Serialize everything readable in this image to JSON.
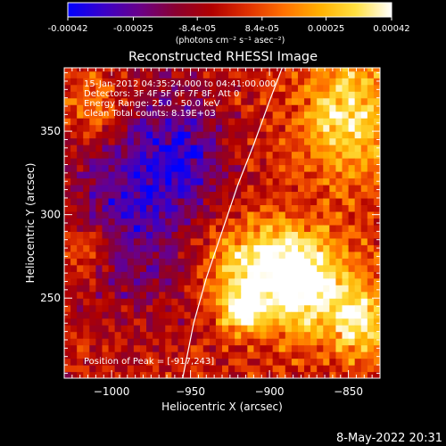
{
  "colorbar": {
    "ticks": [
      "-0.00042",
      "-0.00025",
      "-8.4e-05",
      "8.4e-05",
      "0.00025",
      "0.00042"
    ],
    "tick_values": [
      -0.00042,
      -0.00025,
      -8.4e-05,
      8.4e-05,
      0.00025,
      0.00042
    ],
    "range": [
      -0.00042,
      0.00042
    ],
    "units_label": "(photons cm⁻² s⁻¹ asec⁻²)",
    "colors": [
      "#0000ff",
      "#3a00c8",
      "#6a0088",
      "#8a0030",
      "#b00000",
      "#e03000",
      "#ff7000",
      "#ffb000",
      "#ffe040",
      "#ffffff"
    ]
  },
  "chart_data": {
    "type": "heatmap",
    "title": "Reconstructed RHESSI Image",
    "xlabel": "Heliocentric X (arcsec)",
    "ylabel": "Heliocentric Y (arcsec)",
    "xlim": [
      -1030,
      -830
    ],
    "ylim": [
      202,
      388
    ],
    "x_ticks": [
      -1000,
      -950,
      -900,
      -850
    ],
    "x_tick_labels": [
      "−1000",
      "−950",
      "−900",
      "−850"
    ],
    "y_ticks": [
      250,
      300,
      350
    ],
    "y_tick_labels": [
      "250",
      "300",
      "350"
    ],
    "limb_curve": {
      "x": [
        -955,
        -948,
        -940,
        -930,
        -920,
        -910,
        -900,
        -892
      ],
      "y": [
        202,
        235,
        262,
        290,
        318,
        342,
        368,
        388
      ]
    },
    "hot_regions": [
      {
        "x": -905,
        "y": 270,
        "sx": 26,
        "sy": 18,
        "amp": 0.9
      },
      {
        "x": -875,
        "y": 255,
        "sx": 22,
        "sy": 22,
        "amp": 0.85
      },
      {
        "x": -917,
        "y": 243,
        "sx": 10,
        "sy": 8,
        "amp": 1.0
      },
      {
        "x": -850,
        "y": 360,
        "sx": 20,
        "sy": 28,
        "amp": 0.85
      },
      {
        "x": -842,
        "y": 235,
        "sx": 12,
        "sy": 14,
        "amp": 0.8
      },
      {
        "x": -1010,
        "y": 365,
        "sx": 14,
        "sy": 16,
        "amp": 0.55
      },
      {
        "x": -1015,
        "y": 280,
        "sx": 12,
        "sy": 12,
        "amp": 0.45
      }
    ],
    "cold_regions": [
      {
        "x": -985,
        "y": 310,
        "sx": 30,
        "sy": 45,
        "amp": 0.75
      },
      {
        "x": -950,
        "y": 340,
        "sx": 18,
        "sy": 25,
        "amp": 0.45
      }
    ],
    "peak": [
      -917,
      243
    ]
  },
  "annotations": {
    "time": "15-Jan-2012 04:35:24.000 to 04:41:00.000",
    "detectors": "Detectors: 3F 4F 5F 6F 7F 8F, Att 0",
    "energy": "Energy Range: 25.0 - 50.0 keV",
    "clean": "Clean     Total counts: 8.19E+03",
    "peak": "Position of Peak = [-917,243]"
  },
  "footer": {
    "timestamp": "8-May-2022 20:31"
  }
}
